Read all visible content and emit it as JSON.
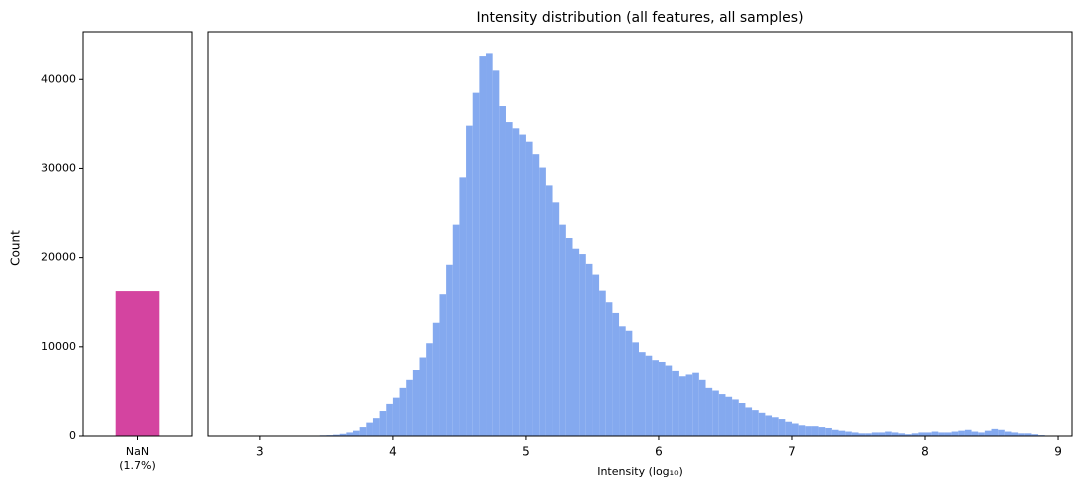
{
  "chart_data": [
    {
      "type": "bar",
      "categories": [
        "NaN\n(1.7%)"
      ],
      "values": [
        16250
      ],
      "color": "#d444a0",
      "ylabel": "Count",
      "ylim": [
        0,
        45300
      ],
      "yticks": [
        0,
        10000,
        20000,
        30000,
        40000
      ]
    },
    {
      "type": "histogram",
      "title": "Intensity distribution (all features, all samples)",
      "xlabel": "Intensity (log₁₀)",
      "color": "#84a9ef",
      "bins": [
        3.2,
        3.25,
        3.3,
        3.35,
        3.4,
        3.45,
        3.5,
        3.55,
        3.6,
        3.65,
        3.7,
        3.75,
        3.8,
        3.85,
        3.9,
        3.95,
        4.0,
        4.05,
        4.1,
        4.15,
        4.2,
        4.25,
        4.3,
        4.35,
        4.4,
        4.45,
        4.5,
        4.55,
        4.6,
        4.65,
        4.7,
        4.75,
        4.8,
        4.85,
        4.9,
        4.95,
        5.0,
        5.05,
        5.1,
        5.15,
        5.2,
        5.25,
        5.3,
        5.35,
        5.4,
        5.45,
        5.5,
        5.55,
        5.6,
        5.65,
        5.7,
        5.75,
        5.8,
        5.85,
        5.9,
        5.95,
        6.0,
        6.05,
        6.1,
        6.15,
        6.2,
        6.25,
        6.3,
        6.35,
        6.4,
        6.45,
        6.5,
        6.55,
        6.6,
        6.65,
        6.7,
        6.75,
        6.8,
        6.85,
        6.9,
        6.95,
        7.0,
        7.05,
        7.1,
        7.15,
        7.2,
        7.25,
        7.3,
        7.35,
        7.4,
        7.45,
        7.5,
        7.55,
        7.6,
        7.65,
        7.7,
        7.75,
        7.8,
        7.85,
        7.9,
        7.95,
        8.0,
        8.05,
        8.1,
        8.15,
        8.2,
        8.25,
        8.3,
        8.35,
        8.4,
        8.45,
        8.5,
        8.55,
        8.6,
        8.65,
        8.7,
        8.75,
        8.8,
        8.85,
        8.9,
        8.95
      ],
      "values": [
        5,
        10,
        20,
        30,
        50,
        80,
        100,
        150,
        250,
        400,
        600,
        1000,
        1500,
        2000,
        2800,
        3600,
        4300,
        5400,
        6300,
        7400,
        8800,
        10400,
        12700,
        15900,
        19200,
        23700,
        29000,
        34800,
        38500,
        42600,
        42900,
        41000,
        37000,
        35200,
        34500,
        33800,
        33000,
        31600,
        30100,
        28100,
        26200,
        23700,
        22200,
        21000,
        20400,
        19300,
        18100,
        16300,
        15000,
        13800,
        12300,
        11800,
        10500,
        9400,
        9000,
        8500,
        8300,
        7900,
        7300,
        6700,
        6900,
        7100,
        6300,
        5400,
        5100,
        4700,
        4400,
        4100,
        3700,
        3200,
        2900,
        2600,
        2300,
        2100,
        1900,
        1600,
        1400,
        1200,
        1100,
        1100,
        1000,
        900,
        700,
        600,
        500,
        400,
        300,
        300,
        400,
        400,
        500,
        400,
        300,
        200,
        300,
        400,
        400,
        500,
        400,
        400,
        500,
        600,
        700,
        500,
        400,
        600,
        800,
        700,
        500,
        400,
        300,
        300,
        200,
        100,
        50
      ],
      "xlim": [
        2.61,
        9.105
      ],
      "xticks": [
        3,
        4,
        5,
        6,
        7,
        8,
        9
      ],
      "ylim": [
        0,
        45300
      ]
    }
  ]
}
